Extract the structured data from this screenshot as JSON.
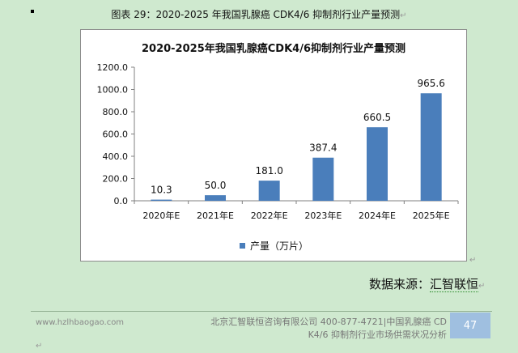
{
  "caption": {
    "text": "图表 29：2020-2025 年我国乳腺癌 CDK4/6 抑制剂行业产量预测"
  },
  "chart_data": {
    "type": "bar",
    "title": "2020-2025年我国乳腺癌CDK4/6抑制剂行业产量预测",
    "categories": [
      "2020年E",
      "2021年E",
      "2022年E",
      "2023年E",
      "2024年E",
      "2025年E"
    ],
    "series": [
      {
        "name": "产量（万片）",
        "values": [
          10.3,
          50.0,
          181.0,
          387.4,
          660.5,
          965.6
        ]
      }
    ],
    "data_labels": [
      "10.3",
      "50.0",
      "181.0",
      "387.4",
      "660.5",
      "965.6"
    ],
    "yticks": [
      "0.0",
      "200.0",
      "400.0",
      "600.0",
      "800.0",
      "1000.0",
      "1200.0"
    ],
    "ylim": [
      0,
      1200
    ],
    "grid": false,
    "legend_position": "bottom",
    "bar_color": "#4a7ebb"
  },
  "source": {
    "label": "数据来源：",
    "name": "汇智联恒"
  },
  "footer": {
    "website": "www.hzlhbaogao.com",
    "line1": "北京汇智联恒咨询有限公司  400-877-4721|中国乳腺癌 CD",
    "line2": "K4/6 抑制剂行业市场供需状况分析",
    "page": "47"
  }
}
